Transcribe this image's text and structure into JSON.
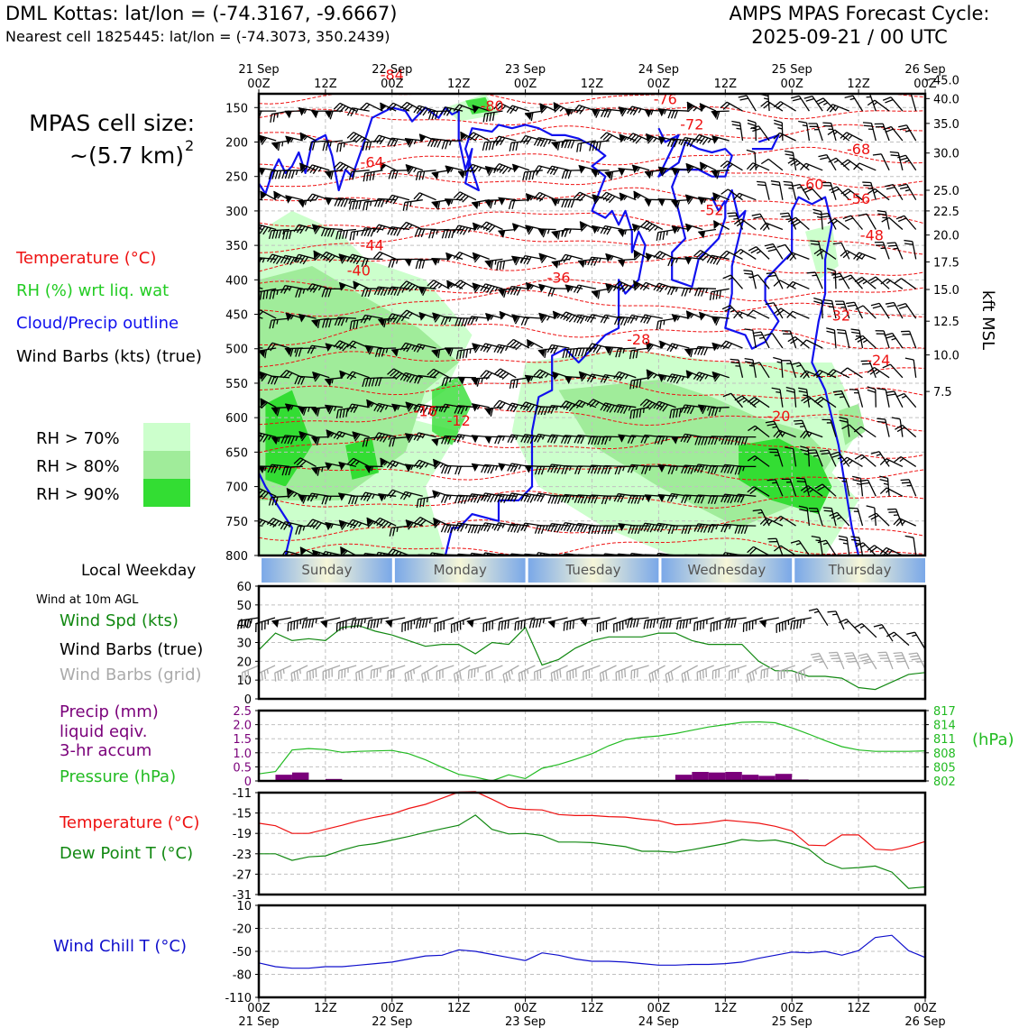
{
  "header": {
    "title_left": "DML Kottas: lat/lon = (-74.3167, -9.6667)",
    "subtitle_left": "Nearest cell 1825445: lat/lon = (-74.3073, 350.2439)",
    "title_right_1": "AMPS MPAS Forecast Cycle:",
    "title_right_2": "2025-09-21 / 00 UTC"
  },
  "sidebar": {
    "cell_size_1": "MPAS cell size:",
    "cell_size_2": "~(5.7 km)",
    "cell_size_sup": "2",
    "legend_temperature": "Temperature (°C)",
    "legend_rh": "RH (%) wrt liq. wat",
    "legend_cloud": "Cloud/Precip outline",
    "legend_wind": "Wind Barbs (kts) (true)",
    "rh_70": "RH > 70%",
    "rh_80": "RH > 80%",
    "rh_90": "RH > 90%",
    "weekday_label": "Local Weekday",
    "wind10m_label": "Wind at 10m AGL",
    "windspd_label": "Wind Spd (kts)",
    "barbs_true_label": "Wind Barbs (true)",
    "barbs_grid_label": "Wind Barbs (grid)",
    "precip_1": "Precip (mm)",
    "precip_2": "liquid eqiv.",
    "precip_3": "3-hr accum",
    "pressure_label": "Pressure (hPa)",
    "temp_label": "Temperature (°C)",
    "dew_label": "Dew Point T (°C)",
    "chill_label": "Wind Chill T (°C)"
  },
  "colors": {
    "temperature": "#ee1111",
    "rh_green": "#22cc22",
    "cloud": "#1010ee",
    "rh70": "#ccffcc",
    "rh80": "#a0ec9a",
    "rh90": "#33dd33",
    "precip": "#7a007a",
    "pressure": "#22bb22",
    "dew": "#118811",
    "windchill": "#1010cc",
    "grid_barbs": "#aaaaaa",
    "weekday_blue": "#7aa8e8",
    "weekday_cream": "#f6f6d8"
  },
  "chart_data": [
    {
      "type": "time-height-cross-section",
      "x_top_date_labels": [
        "21 Sep",
        "22 Sep",
        "23 Sep",
        "24 Sep",
        "25 Sep",
        "26 Sep"
      ],
      "x_time_labels": [
        "00Z",
        "12Z",
        "00Z",
        "12Z",
        "00Z",
        "12Z",
        "00Z",
        "12Z",
        "00Z",
        "12Z",
        "00Z"
      ],
      "y_pressure_ticks": [
        150,
        200,
        250,
        300,
        350,
        400,
        450,
        500,
        550,
        600,
        650,
        700,
        750,
        800
      ],
      "ylim_pressure": [
        130,
        800
      ],
      "y_right_label": "kft MSL",
      "y_right_ticks": [
        {
          "label": "45.0",
          "p": 110
        },
        {
          "label": "40.0",
          "p": 137
        },
        {
          "label": "35.0",
          "p": 173
        },
        {
          "label": "30.0",
          "p": 216
        },
        {
          "label": "25.0",
          "p": 270
        },
        {
          "label": "22.5",
          "p": 300
        },
        {
          "label": "20.0",
          "p": 335
        },
        {
          "label": "17.5",
          "p": 374
        },
        {
          "label": "15.0",
          "p": 414
        },
        {
          "label": "12.5",
          "p": 460
        },
        {
          "label": "10.0",
          "p": 509
        },
        {
          "label": "7.5",
          "p": 562
        }
      ],
      "temperature_contour_labels": [
        {
          "text": "-84",
          "t": 0.2,
          "p": 102
        },
        {
          "text": "-80",
          "t": 0.35,
          "p": 147
        },
        {
          "text": "-76",
          "t": 0.61,
          "p": 137
        },
        {
          "text": "-72",
          "t": 0.65,
          "p": 174
        },
        {
          "text": "-68",
          "t": 0.9,
          "p": 210
        },
        {
          "text": "-64",
          "t": 0.17,
          "p": 229
        },
        {
          "text": "-60",
          "t": 0.83,
          "p": 261
        },
        {
          "text": "-56",
          "t": 0.9,
          "p": 282
        },
        {
          "text": "-52",
          "t": 0.68,
          "p": 298
        },
        {
          "text": "-48",
          "t": 0.92,
          "p": 335
        },
        {
          "text": "-44",
          "t": 0.17,
          "p": 349
        },
        {
          "text": "-40",
          "t": 0.15,
          "p": 386
        },
        {
          "text": "-36",
          "t": 0.45,
          "p": 396
        },
        {
          "text": "-32",
          "t": 0.87,
          "p": 451
        },
        {
          "text": "-28",
          "t": 0.57,
          "p": 486
        },
        {
          "text": "-24",
          "t": 0.93,
          "p": 516
        },
        {
          "text": "-20",
          "t": 0.78,
          "p": 597
        },
        {
          "text": "-16",
          "t": 0.25,
          "p": 590
        },
        {
          "text": "-12",
          "t": 0.3,
          "p": 604
        }
      ],
      "rh_regions_pct": [
        70,
        80,
        90
      ]
    },
    {
      "type": "weekday-band",
      "categories": [
        "Sunday",
        "Monday",
        "Tuesday",
        "Wednesday",
        "Thursday"
      ]
    },
    {
      "type": "line",
      "yticks": [
        0,
        10,
        20,
        30,
        40,
        50,
        60
      ],
      "ylim": [
        0,
        60
      ],
      "x_hours": [
        0,
        3,
        6,
        9,
        12,
        15,
        18,
        21,
        24,
        27,
        30,
        33,
        36,
        39,
        42,
        45,
        48,
        51,
        54,
        57,
        60,
        63,
        66,
        69,
        72,
        75,
        78,
        81,
        84,
        87,
        90,
        93,
        96,
        99,
        102,
        105,
        108,
        111,
        114,
        117,
        120
      ],
      "series": [
        {
          "values": [
            26,
            35,
            31,
            32,
            31,
            38,
            39,
            36,
            34,
            31,
            28,
            29,
            29,
            24,
            30,
            29,
            38,
            18,
            21,
            27,
            31,
            33,
            33,
            33,
            35,
            35,
            31,
            29,
            29,
            29,
            20,
            15,
            15,
            12,
            12,
            11,
            6,
            5,
            9,
            13,
            14
          ]
        }
      ]
    },
    {
      "type": "bar+line",
      "ylim_precip": [
        0,
        2.5
      ],
      "yticks_precip": [
        "0",
        "0.5",
        "1.0",
        "1.5",
        "2.0",
        "2.5"
      ],
      "yticks_pressure": [
        "802",
        "805",
        "808",
        "811",
        "814",
        "817"
      ],
      "ylim_pressure": [
        802,
        817
      ],
      "right_axis_label": "(hPa)",
      "precip_series": {
        "x_hours": [
          3,
          6,
          9,
          12,
          15,
          18,
          21,
          24,
          27,
          30,
          33,
          36,
          39,
          42,
          45,
          48,
          51,
          54,
          57,
          60,
          63,
          66,
          69,
          72,
          75,
          78,
          81,
          84,
          87,
          90,
          93,
          96,
          99,
          102,
          105,
          108,
          111,
          114,
          117
        ],
        "values": [
          0,
          0.22,
          0.3,
          0,
          0.07,
          0,
          0,
          0,
          0,
          0,
          0,
          0,
          0,
          0,
          0,
          0,
          0,
          0,
          0,
          0,
          0,
          0,
          0,
          0,
          0,
          0.22,
          0.32,
          0.3,
          0.32,
          0.22,
          0.18,
          0.25,
          0.05,
          0,
          0,
          0,
          0,
          0,
          0
        ]
      },
      "pressure_series": {
        "x_hours": [
          0,
          3,
          6,
          9,
          12,
          15,
          18,
          21,
          24,
          27,
          30,
          33,
          36,
          39,
          42,
          45,
          48,
          51,
          54,
          57,
          60,
          63,
          66,
          69,
          72,
          75,
          78,
          81,
          84,
          87,
          90,
          93,
          96,
          99,
          102,
          105,
          108,
          111,
          114,
          117,
          120
        ],
        "values": [
          803.5,
          804.0,
          808.6,
          808.9,
          808.7,
          808.1,
          808.3,
          808.4,
          808.5,
          807.8,
          806.5,
          804.9,
          803.4,
          802.8,
          802.0,
          803.3,
          802.5,
          804.7,
          805.5,
          806.6,
          807.8,
          809.5,
          810.8,
          811.3,
          811.6,
          812.1,
          812.8,
          813.5,
          814.0,
          814.5,
          814.6,
          814.4,
          813.3,
          812.0,
          810.6,
          809.3,
          808.6,
          808.3,
          808.3,
          808.3,
          808.4
        ]
      }
    },
    {
      "type": "line",
      "yticks": [
        -31,
        -27,
        -23,
        -19,
        -15,
        -11
      ],
      "ylim": [
        -31,
        -11
      ],
      "x_hours": [
        0,
        3,
        6,
        9,
        12,
        15,
        18,
        21,
        24,
        27,
        30,
        33,
        36,
        39,
        42,
        45,
        48,
        51,
        54,
        57,
        60,
        63,
        66,
        69,
        72,
        75,
        78,
        81,
        84,
        87,
        90,
        93,
        96,
        99,
        102,
        105,
        108,
        111,
        114,
        117,
        120
      ],
      "series": [
        {
          "name": "Temperature",
          "values": [
            -17.0,
            -17.5,
            -19.0,
            -19.0,
            -18.2,
            -17.4,
            -16.5,
            -15.8,
            -15.2,
            -14.1,
            -13.3,
            -12.1,
            -10.9,
            -10.8,
            -12.3,
            -13.9,
            -14.3,
            -14.4,
            -15.3,
            -15.5,
            -15.5,
            -15.7,
            -15.8,
            -16.2,
            -16.5,
            -17.3,
            -17.2,
            -16.9,
            -16.4,
            -16.7,
            -17.0,
            -17.6,
            -18.5,
            -21.3,
            -21.4,
            -19.3,
            -19.3,
            -22.1,
            -22.3,
            -21.6,
            -20.6
          ]
        },
        {
          "name": "Dew Point",
          "values": [
            -23.0,
            -23.0,
            -24.3,
            -23.6,
            -23.4,
            -22.3,
            -21.4,
            -21.0,
            -20.3,
            -19.6,
            -18.8,
            -18.1,
            -17.4,
            -15.4,
            -18.2,
            -19.1,
            -19.0,
            -19.4,
            -20.7,
            -20.7,
            -20.8,
            -21.2,
            -21.6,
            -22.5,
            -22.5,
            -22.7,
            -22.2,
            -21.6,
            -21.0,
            -20.2,
            -20.5,
            -20.3,
            -21.0,
            -22.1,
            -24.7,
            -25.9,
            -25.7,
            -25.4,
            -26.6,
            -29.8,
            -29.5
          ]
        }
      ]
    },
    {
      "type": "line",
      "yticks": [
        -110,
        -80,
        -50,
        -20,
        10
      ],
      "ylim": [
        -110,
        10
      ],
      "x_hours": [
        0,
        3,
        6,
        9,
        12,
        15,
        18,
        21,
        24,
        27,
        30,
        33,
        36,
        39,
        42,
        45,
        48,
        51,
        54,
        57,
        60,
        63,
        66,
        69,
        72,
        75,
        78,
        81,
        84,
        87,
        90,
        93,
        96,
        99,
        102,
        105,
        108,
        111,
        114,
        117,
        120
      ],
      "series": [
        {
          "name": "Wind Chill T",
          "values": [
            -65,
            -70,
            -72,
            -72,
            -70,
            -70,
            -68,
            -66,
            -64,
            -60,
            -56,
            -55,
            -48,
            -50,
            -54,
            -58,
            -62,
            -52,
            -55,
            -60,
            -63,
            -63,
            -64,
            -66,
            -68,
            -68,
            -67,
            -67,
            -66,
            -64,
            -59,
            -55,
            -51,
            -52,
            -50,
            -55,
            -49,
            -32,
            -29,
            -49,
            -58
          ]
        }
      ]
    }
  ]
}
